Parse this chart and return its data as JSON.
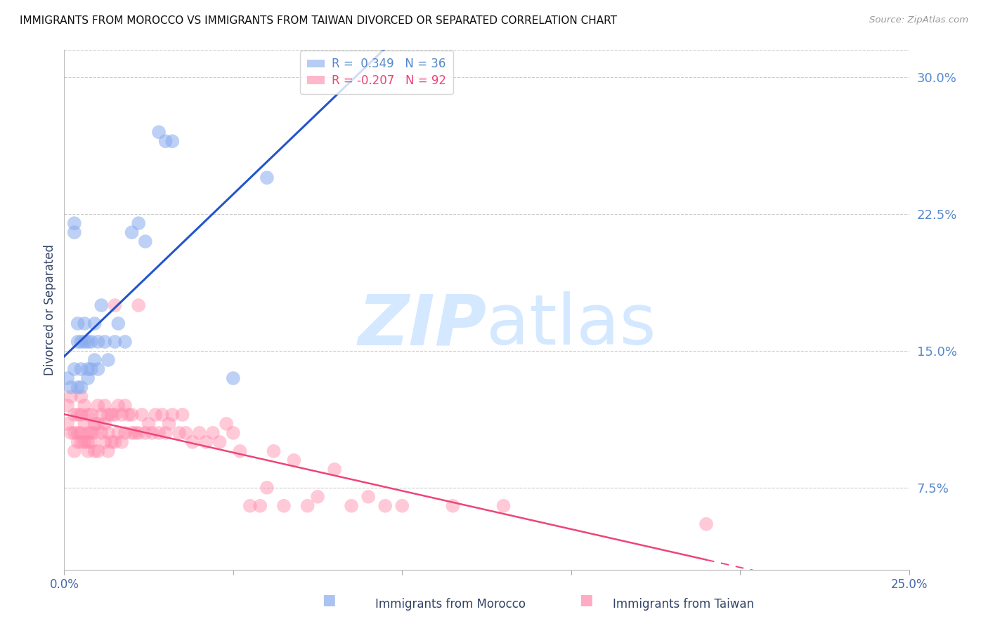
{
  "title": "IMMIGRANTS FROM MOROCCO VS IMMIGRANTS FROM TAIWAN DIVORCED OR SEPARATED CORRELATION CHART",
  "source": "Source: ZipAtlas.com",
  "ylabel": "Divorced or Separated",
  "xlim": [
    0.0,
    0.25
  ],
  "ylim": [
    0.03,
    0.315
  ],
  "ytick_right_labels": [
    "7.5%",
    "15.0%",
    "22.5%",
    "30.0%"
  ],
  "ytick_right_values": [
    0.075,
    0.15,
    0.225,
    0.3
  ],
  "xtick_values": [
    0.0,
    0.05,
    0.1,
    0.15,
    0.2,
    0.25
  ],
  "xtick_labels_bottom": [
    "0.0%",
    "",
    "",
    "",
    "",
    "25.0%"
  ],
  "morocco_color": "#88aaee",
  "taiwan_color": "#ff88aa",
  "morocco_line_color": "#2255cc",
  "taiwan_line_color": "#ee4477",
  "watermark": "ZIPatlas",
  "watermark_color": "#d0e8ff",
  "background_color": "#ffffff",
  "grid_color": "#cccccc",
  "legend_label_blue": "R =  0.349   N = 36",
  "legend_label_pink": "R = -0.207   N = 92",
  "bottom_legend_morocco": "Immigrants from Morocco",
  "bottom_legend_taiwan": "Immigrants from Taiwan",
  "morocco_points_x": [
    0.001,
    0.002,
    0.003,
    0.003,
    0.003,
    0.004,
    0.004,
    0.004,
    0.005,
    0.005,
    0.005,
    0.006,
    0.006,
    0.007,
    0.007,
    0.007,
    0.008,
    0.008,
    0.009,
    0.009,
    0.01,
    0.01,
    0.011,
    0.012,
    0.013,
    0.015,
    0.016,
    0.018,
    0.02,
    0.022,
    0.024,
    0.028,
    0.03,
    0.032,
    0.05,
    0.06
  ],
  "morocco_points_y": [
    0.135,
    0.13,
    0.14,
    0.22,
    0.215,
    0.13,
    0.155,
    0.165,
    0.13,
    0.14,
    0.155,
    0.155,
    0.165,
    0.135,
    0.14,
    0.155,
    0.14,
    0.155,
    0.145,
    0.165,
    0.14,
    0.155,
    0.175,
    0.155,
    0.145,
    0.155,
    0.165,
    0.155,
    0.215,
    0.22,
    0.21,
    0.27,
    0.265,
    0.265,
    0.135,
    0.245
  ],
  "taiwan_points_x": [
    0.001,
    0.001,
    0.002,
    0.002,
    0.003,
    0.003,
    0.003,
    0.004,
    0.004,
    0.004,
    0.005,
    0.005,
    0.005,
    0.005,
    0.006,
    0.006,
    0.006,
    0.007,
    0.007,
    0.007,
    0.007,
    0.008,
    0.008,
    0.008,
    0.009,
    0.009,
    0.009,
    0.01,
    0.01,
    0.01,
    0.011,
    0.011,
    0.012,
    0.012,
    0.012,
    0.013,
    0.013,
    0.013,
    0.014,
    0.014,
    0.015,
    0.015,
    0.015,
    0.016,
    0.016,
    0.017,
    0.017,
    0.018,
    0.018,
    0.019,
    0.02,
    0.02,
    0.021,
    0.022,
    0.022,
    0.023,
    0.024,
    0.025,
    0.026,
    0.027,
    0.028,
    0.029,
    0.03,
    0.031,
    0.032,
    0.034,
    0.035,
    0.036,
    0.038,
    0.04,
    0.042,
    0.044,
    0.046,
    0.048,
    0.05,
    0.052,
    0.055,
    0.058,
    0.06,
    0.062,
    0.065,
    0.068,
    0.072,
    0.075,
    0.08,
    0.085,
    0.09,
    0.095,
    0.1,
    0.115,
    0.13,
    0.19
  ],
  "taiwan_points_y": [
    0.12,
    0.11,
    0.125,
    0.105,
    0.115,
    0.105,
    0.095,
    0.115,
    0.105,
    0.1,
    0.125,
    0.115,
    0.105,
    0.1,
    0.12,
    0.11,
    0.1,
    0.115,
    0.105,
    0.1,
    0.095,
    0.115,
    0.105,
    0.1,
    0.11,
    0.105,
    0.095,
    0.12,
    0.11,
    0.095,
    0.115,
    0.105,
    0.12,
    0.11,
    0.1,
    0.115,
    0.105,
    0.095,
    0.115,
    0.1,
    0.175,
    0.115,
    0.1,
    0.12,
    0.105,
    0.115,
    0.1,
    0.12,
    0.105,
    0.115,
    0.115,
    0.105,
    0.105,
    0.175,
    0.105,
    0.115,
    0.105,
    0.11,
    0.105,
    0.115,
    0.105,
    0.115,
    0.105,
    0.11,
    0.115,
    0.105,
    0.115,
    0.105,
    0.1,
    0.105,
    0.1,
    0.105,
    0.1,
    0.11,
    0.105,
    0.095,
    0.065,
    0.065,
    0.075,
    0.095,
    0.065,
    0.09,
    0.065,
    0.07,
    0.085,
    0.065,
    0.07,
    0.065,
    0.065,
    0.065,
    0.065,
    0.055
  ]
}
